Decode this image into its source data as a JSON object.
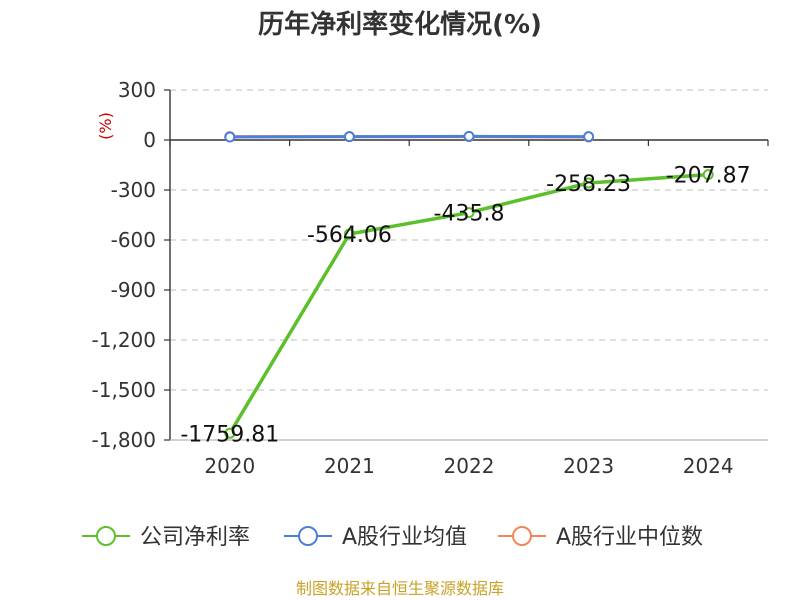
{
  "chart_data": {
    "type": "line",
    "title": "历年净利率变化情况(%)",
    "unit_label": "(%)",
    "categories": [
      "2020",
      "2021",
      "2022",
      "2023",
      "2024"
    ],
    "ylim": [
      -1800,
      300
    ],
    "yticks": [
      300,
      0,
      -300,
      -600,
      -900,
      -1200,
      -1500,
      -1800
    ],
    "ytick_labels": [
      "300",
      "0",
      "-300",
      "-600",
      "-900",
      "-1,200",
      "-1,500",
      "-1,800"
    ],
    "grid": true,
    "legend_position": "bottom",
    "series": [
      {
        "name": "公司净利率",
        "color": "#5cc02a",
        "values": [
          -1759.81,
          -564.06,
          -435.8,
          -258.23,
          -207.87
        ],
        "labels": [
          "-1759.81",
          "-564.06",
          "-435.8",
          "-258.23",
          "-207.87"
        ]
      },
      {
        "name": "A股行业均值",
        "color": "#4d7fd6",
        "values": [
          18,
          20,
          22,
          20,
          null
        ]
      },
      {
        "name": "A股行业中位数",
        "color": "#f0875a",
        "values": [
          20,
          20,
          20,
          18,
          null
        ]
      }
    ],
    "source": "制图数据来自恒生聚源数据库"
  }
}
